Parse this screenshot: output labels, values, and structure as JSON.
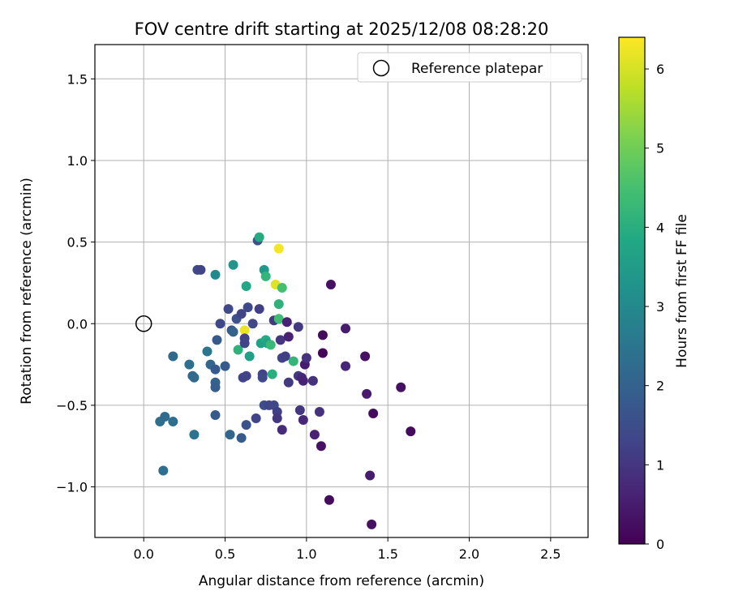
{
  "chart_data": {
    "type": "scatter",
    "title": "FOV centre drift starting at 2025/12/08 08:28:20",
    "xlabel": "Angular distance from reference (arcmin)",
    "ylabel": "Rotation from reference (arcmin)",
    "xlim": [
      -0.3,
      2.73
    ],
    "ylim": [
      -1.31,
      1.71
    ],
    "xticks": [
      0.0,
      0.5,
      1.0,
      1.5,
      2.0,
      2.5
    ],
    "xtick_labels": [
      "0.0",
      "0.5",
      "1.0",
      "1.5",
      "2.0",
      "2.5"
    ],
    "yticks": [
      1.5,
      1.0,
      0.5,
      0.0,
      -0.5,
      -1.0
    ],
    "ytick_labels": [
      "1.5",
      "1.0",
      "0.5",
      "0.0",
      "−0.5",
      "−1.0"
    ],
    "grid": true,
    "legend": {
      "location": "upper-right",
      "label": "Reference platepar"
    },
    "reference_point": {
      "x": 0.0,
      "y": 0.0
    },
    "colorbar": {
      "label": "Hours from first FF file",
      "range": [
        0,
        6.4
      ],
      "ticks": [
        0,
        1,
        2,
        3,
        4,
        5,
        6
      ],
      "tick_labels": [
        "0",
        "1",
        "2",
        "3",
        "4",
        "5",
        "6"
      ]
    },
    "points": [
      {
        "x": 0.1,
        "y": -0.6,
        "h": 2.3
      },
      {
        "x": 0.13,
        "y": -0.57,
        "h": 2.2
      },
      {
        "x": 0.18,
        "y": -0.6,
        "h": 2.3
      },
      {
        "x": 0.12,
        "y": -0.9,
        "h": 2.3
      },
      {
        "x": 0.18,
        "y": -0.2,
        "h": 2.2
      },
      {
        "x": 0.28,
        "y": -0.25,
        "h": 2.3
      },
      {
        "x": 0.3,
        "y": -0.32,
        "h": 2.1
      },
      {
        "x": 0.31,
        "y": -0.33,
        "h": 2.2
      },
      {
        "x": 0.31,
        "y": -0.68,
        "h": 2.4
      },
      {
        "x": 0.33,
        "y": 0.33,
        "h": 1.4
      },
      {
        "x": 0.35,
        "y": 0.33,
        "h": 1.3
      },
      {
        "x": 0.39,
        "y": -0.17,
        "h": 2.5
      },
      {
        "x": 0.41,
        "y": -0.25,
        "h": 2.1
      },
      {
        "x": 0.44,
        "y": 0.3,
        "h": 3.0
      },
      {
        "x": 0.44,
        "y": -0.36,
        "h": 2.0
      },
      {
        "x": 0.44,
        "y": -0.39,
        "h": 1.9
      },
      {
        "x": 0.44,
        "y": -0.56,
        "h": 1.8
      },
      {
        "x": 0.45,
        "y": -0.1,
        "h": 1.8
      },
      {
        "x": 0.44,
        "y": -0.28,
        "h": 1.8
      },
      {
        "x": 0.47,
        "y": 0.0,
        "h": 1.4
      },
      {
        "x": 0.5,
        "y": -0.26,
        "h": 1.8
      },
      {
        "x": 0.52,
        "y": 0.09,
        "h": 1.4
      },
      {
        "x": 0.53,
        "y": -0.68,
        "h": 2.1
      },
      {
        "x": 0.54,
        "y": -0.04,
        "h": 1.7
      },
      {
        "x": 0.55,
        "y": -0.05,
        "h": 2.0
      },
      {
        "x": 0.55,
        "y": 0.36,
        "h": 3.3
      },
      {
        "x": 0.57,
        "y": 0.03,
        "h": 1.6
      },
      {
        "x": 0.58,
        "y": -0.16,
        "h": 4.1
      },
      {
        "x": 0.6,
        "y": 0.06,
        "h": 1.3
      },
      {
        "x": 0.6,
        "y": -0.7,
        "h": 1.8
      },
      {
        "x": 0.61,
        "y": -0.33,
        "h": 1.3
      },
      {
        "x": 0.62,
        "y": -0.04,
        "h": 6.2
      },
      {
        "x": 0.62,
        "y": -0.09,
        "h": 1.2
      },
      {
        "x": 0.62,
        "y": -0.12,
        "h": 1.3
      },
      {
        "x": 0.63,
        "y": -0.32,
        "h": 1.3
      },
      {
        "x": 0.63,
        "y": -0.62,
        "h": 1.6
      },
      {
        "x": 0.63,
        "y": 0.23,
        "h": 3.8
      },
      {
        "x": 0.64,
        "y": 0.1,
        "h": 1.4
      },
      {
        "x": 0.65,
        "y": -0.2,
        "h": 3.6
      },
      {
        "x": 0.67,
        "y": 0.0,
        "h": 1.4
      },
      {
        "x": 0.69,
        "y": -0.58,
        "h": 1.3
      },
      {
        "x": 0.7,
        "y": 0.51,
        "h": 1.6
      },
      {
        "x": 0.71,
        "y": 0.53,
        "h": 3.9
      },
      {
        "x": 0.71,
        "y": 0.09,
        "h": 1.2
      },
      {
        "x": 0.72,
        "y": -0.12,
        "h": 3.6
      },
      {
        "x": 0.73,
        "y": -0.31,
        "h": 1.3
      },
      {
        "x": 0.73,
        "y": -0.33,
        "h": 1.4
      },
      {
        "x": 0.74,
        "y": 0.33,
        "h": 3.4
      },
      {
        "x": 0.75,
        "y": 0.29,
        "h": 4.2
      },
      {
        "x": 0.74,
        "y": -0.5,
        "h": 1.5
      },
      {
        "x": 0.75,
        "y": -0.1,
        "h": 3.9
      },
      {
        "x": 0.76,
        "y": -0.12,
        "h": 3.7
      },
      {
        "x": 0.77,
        "y": -0.5,
        "h": 1.3
      },
      {
        "x": 0.78,
        "y": -0.13,
        "h": 4.3
      },
      {
        "x": 0.79,
        "y": -0.31,
        "h": 4.0
      },
      {
        "x": 0.8,
        "y": 0.02,
        "h": 1.1
      },
      {
        "x": 0.8,
        "y": -0.5,
        "h": 1.4
      },
      {
        "x": 0.81,
        "y": 0.24,
        "h": 6.1
      },
      {
        "x": 0.82,
        "y": -0.54,
        "h": 1.2
      },
      {
        "x": 0.82,
        "y": -0.58,
        "h": 1.0
      },
      {
        "x": 0.83,
        "y": 0.46,
        "h": 6.3
      },
      {
        "x": 0.83,
        "y": 0.12,
        "h": 4.1
      },
      {
        "x": 0.83,
        "y": 0.03,
        "h": 4.4
      },
      {
        "x": 0.84,
        "y": -0.1,
        "h": 1.0
      },
      {
        "x": 0.85,
        "y": 0.22,
        "h": 4.5
      },
      {
        "x": 0.85,
        "y": -0.21,
        "h": 1.3
      },
      {
        "x": 0.85,
        "y": -0.65,
        "h": 0.8
      },
      {
        "x": 0.87,
        "y": -0.2,
        "h": 1.2
      },
      {
        "x": 0.88,
        "y": 0.01,
        "h": 0.6
      },
      {
        "x": 0.89,
        "y": -0.08,
        "h": 0.6
      },
      {
        "x": 0.89,
        "y": -0.36,
        "h": 1.1
      },
      {
        "x": 0.92,
        "y": -0.23,
        "h": 4.2
      },
      {
        "x": 0.95,
        "y": -0.32,
        "h": 1.1
      },
      {
        "x": 0.95,
        "y": -0.02,
        "h": 1.1
      },
      {
        "x": 0.96,
        "y": -0.53,
        "h": 1.0
      },
      {
        "x": 0.97,
        "y": -0.33,
        "h": 0.7
      },
      {
        "x": 0.98,
        "y": -0.35,
        "h": 0.6
      },
      {
        "x": 0.98,
        "y": -0.59,
        "h": 0.7
      },
      {
        "x": 0.99,
        "y": -0.25,
        "h": 0.5
      },
      {
        "x": 1.0,
        "y": -0.21,
        "h": 0.9
      },
      {
        "x": 1.04,
        "y": -0.35,
        "h": 0.9
      },
      {
        "x": 1.05,
        "y": -0.68,
        "h": 0.6
      },
      {
        "x": 1.08,
        "y": -0.54,
        "h": 0.9
      },
      {
        "x": 1.09,
        "y": -0.75,
        "h": 0.3
      },
      {
        "x": 1.1,
        "y": -0.18,
        "h": 0.1
      },
      {
        "x": 1.1,
        "y": -0.07,
        "h": 0.2
      },
      {
        "x": 1.14,
        "y": -1.08,
        "h": 0.2
      },
      {
        "x": 1.15,
        "y": 0.24,
        "h": 0.3
      },
      {
        "x": 1.24,
        "y": -0.03,
        "h": 0.5
      },
      {
        "x": 1.24,
        "y": -0.26,
        "h": 0.7
      },
      {
        "x": 1.36,
        "y": -0.2,
        "h": 0.3
      },
      {
        "x": 1.37,
        "y": -0.43,
        "h": 0.5
      },
      {
        "x": 1.39,
        "y": -0.93,
        "h": 0.5
      },
      {
        "x": 1.4,
        "y": -1.23,
        "h": 0.3
      },
      {
        "x": 1.41,
        "y": -0.55,
        "h": 0.2
      },
      {
        "x": 1.58,
        "y": -0.39,
        "h": 0.3
      },
      {
        "x": 1.64,
        "y": -0.66,
        "h": 0.2
      }
    ]
  }
}
